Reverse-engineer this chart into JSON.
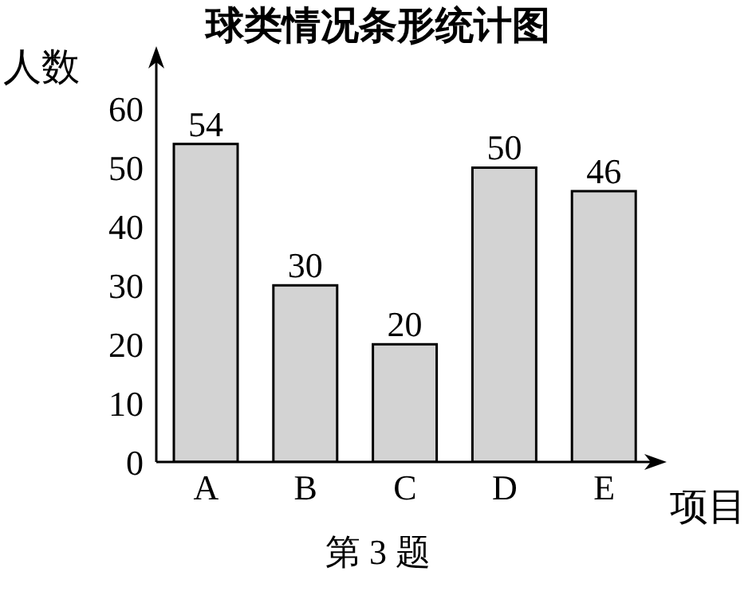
{
  "chart_data": {
    "type": "bar",
    "title": "球类情况条形统计图",
    "ylabel": "人数",
    "xlabel": "项目",
    "categories": [
      "A",
      "B",
      "C",
      "D",
      "E"
    ],
    "values": [
      54,
      30,
      20,
      50,
      46
    ],
    "color": "#d3d3d3",
    "ylim": [
      0,
      69
    ],
    "yticks": [
      0,
      10,
      20,
      30,
      40,
      50,
      60
    ],
    "grid": false,
    "data_labels": true,
    "annotations": [
      "第 3 题"
    ]
  }
}
